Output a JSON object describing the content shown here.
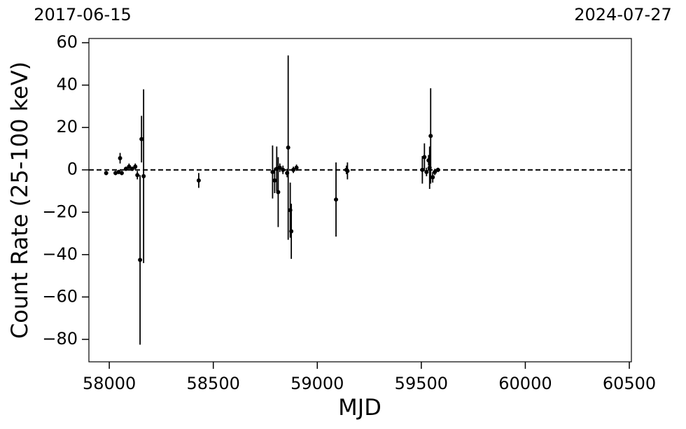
{
  "chart_data": {
    "type": "scatter",
    "top_labels": [
      "2017-06-15",
      "2024-07-27"
    ],
    "xlabel": "MJD",
    "ylabel": "Count Rate (25-100 keV)",
    "xlim": [
      57902,
      60510
    ],
    "ylim": [
      -90.6,
      62
    ],
    "xticks": [
      58000,
      58500,
      59000,
      59500,
      60000,
      60500
    ],
    "yticks": [
      {
        "value": -80,
        "label": "−80"
      },
      {
        "value": -60,
        "label": "−60"
      },
      {
        "value": -40,
        "label": "−40"
      },
      {
        "value": -20,
        "label": "−20"
      },
      0,
      20,
      40,
      60
    ],
    "hline": 0,
    "color": "#000000",
    "series": [
      {
        "x": [
          57985,
          58030,
          58045,
          58052,
          58060,
          58080,
          58095,
          58110,
          58125,
          58135,
          58148,
          58155,
          58165,
          58430,
          58785,
          58795,
          58805,
          58812,
          58820,
          58835,
          58855,
          58860,
          58870,
          58875,
          58885,
          58900,
          59090,
          59140,
          59145,
          59505,
          59515,
          59525,
          59535,
          59540,
          59545,
          59555,
          59565,
          59580
        ],
        "values": [
          -1.5,
          -1.5,
          -1,
          5.5,
          -1.5,
          0.5,
          1.5,
          0.5,
          1.5,
          -2.5,
          -42.5,
          14.5,
          -3,
          -5,
          -1,
          -5,
          0.5,
          -10.5,
          1,
          0,
          -1.5,
          10.5,
          -19,
          -29,
          0,
          1,
          -14,
          0,
          -0.5,
          0,
          6,
          -1,
          4.5,
          1,
          16,
          -3.5,
          -1,
          0
        ],
        "errors": [
          1,
          1,
          1,
          2.5,
          1,
          1,
          1.5,
          1,
          1.5,
          2,
          40,
          11,
          41,
          3.5,
          12.5,
          6,
          10.5,
          16.5,
          2,
          2,
          2,
          43.5,
          13,
          13,
          1.5,
          1.5,
          17.5,
          2,
          4,
          6.5,
          6.5,
          2,
          2.5,
          10,
          22.5,
          2.5,
          1.5,
          1
        ]
      }
    ]
  }
}
